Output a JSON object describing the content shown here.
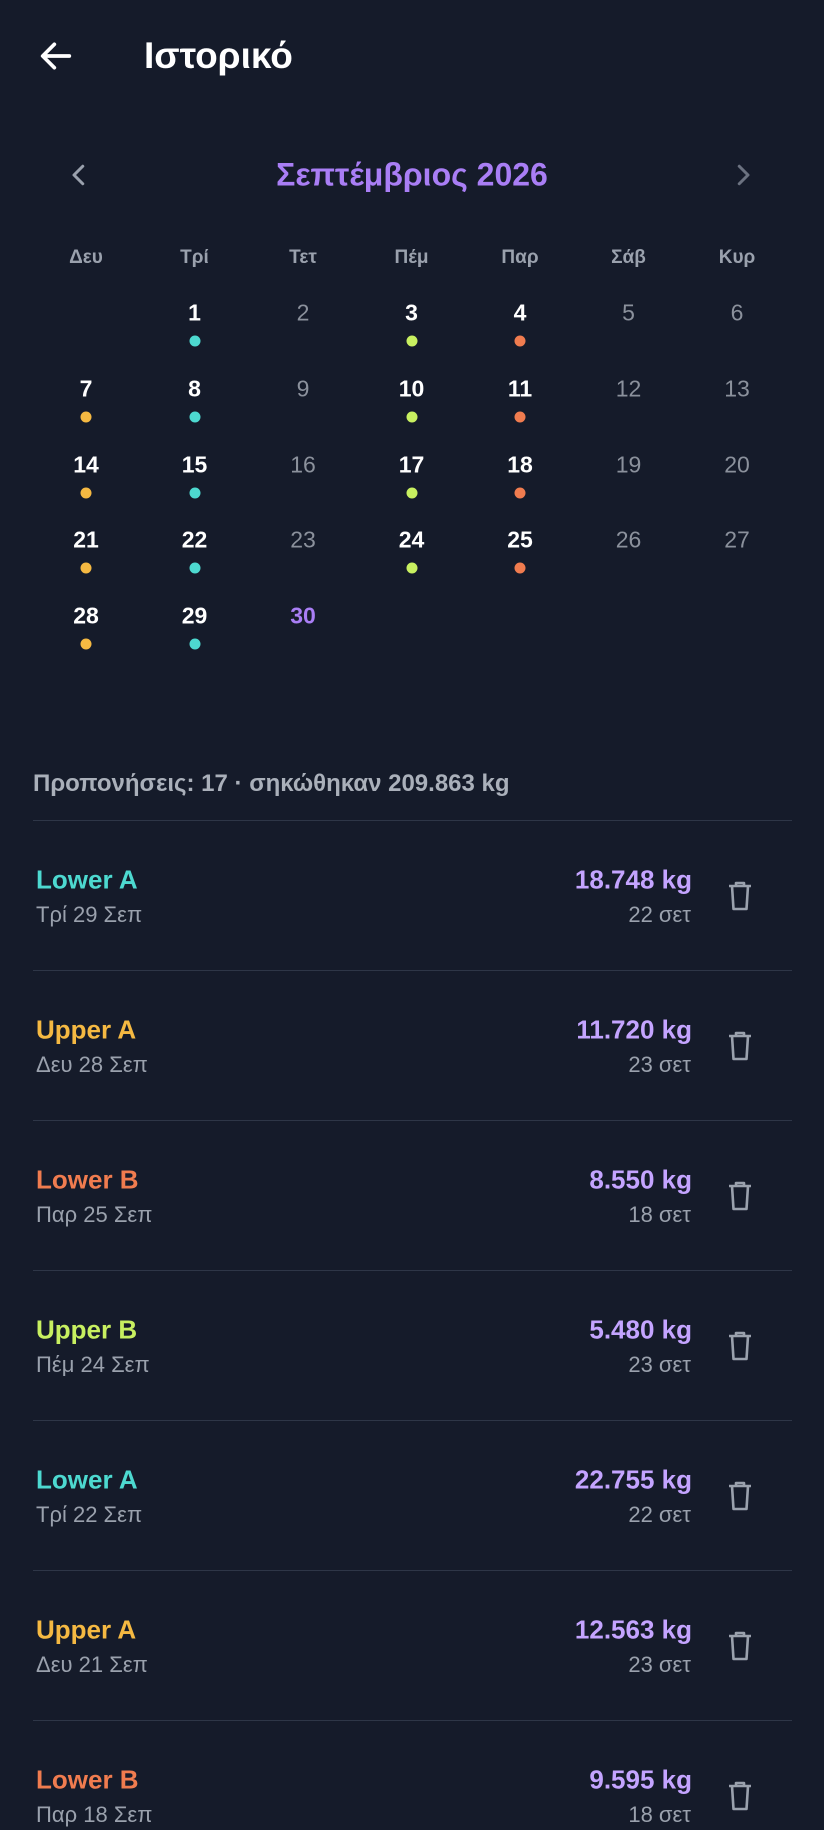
{
  "header": {
    "title": "Ιστορικό"
  },
  "calendar": {
    "month_title": "Σεπτέμβριος 2026",
    "weekdays": [
      "Δευ",
      "Τρί",
      "Τετ",
      "Πέμ",
      "Παρ",
      "Σάβ",
      "Κυρ"
    ],
    "weeks": [
      [
        null,
        {
          "day": 1,
          "dot": "#4dd9d0"
        },
        {
          "day": 2
        },
        {
          "day": 3,
          "dot": "#c8f060"
        },
        {
          "day": 4,
          "dot": "#f07c4f"
        },
        {
          "day": 5
        },
        {
          "day": 6
        }
      ],
      [
        {
          "day": 7,
          "dot": "#f5b942"
        },
        {
          "day": 8,
          "dot": "#4dd9d0"
        },
        {
          "day": 9
        },
        {
          "day": 10,
          "dot": "#c8f060"
        },
        {
          "day": 11,
          "dot": "#f07c4f"
        },
        {
          "day": 12
        },
        {
          "day": 13
        }
      ],
      [
        {
          "day": 14,
          "dot": "#f5b942"
        },
        {
          "day": 15,
          "dot": "#4dd9d0"
        },
        {
          "day": 16
        },
        {
          "day": 17,
          "dot": "#c8f060"
        },
        {
          "day": 18,
          "dot": "#f07c4f"
        },
        {
          "day": 19
        },
        {
          "day": 20
        }
      ],
      [
        {
          "day": 21,
          "dot": "#f5b942"
        },
        {
          "day": 22,
          "dot": "#4dd9d0"
        },
        {
          "day": 23
        },
        {
          "day": 24,
          "dot": "#c8f060"
        },
        {
          "day": 25,
          "dot": "#f07c4f"
        },
        {
          "day": 26
        },
        {
          "day": 27
        }
      ],
      [
        {
          "day": 28,
          "dot": "#f5b942"
        },
        {
          "day": 29,
          "dot": "#4dd9d0"
        },
        {
          "day": 30,
          "today": true
        }
      ]
    ]
  },
  "summary": "Προπονήσεις: 17 · σηκώθηκαν 209.863 kg",
  "sessions": [
    {
      "name": "Lower A",
      "color": "#4dd9d0",
      "date": "Τρί 29 Σεπ",
      "volume": "18.748 kg",
      "sets": "22 σετ"
    },
    {
      "name": "Upper A",
      "color": "#f5b942",
      "date": "Δευ 28 Σεπ",
      "volume": "11.720 kg",
      "sets": "23 σετ"
    },
    {
      "name": "Lower B",
      "color": "#f07c4f",
      "date": "Παρ 25 Σεπ",
      "volume": "8.550 kg",
      "sets": "18 σετ"
    },
    {
      "name": "Upper B",
      "color": "#c8f060",
      "date": "Πέμ 24 Σεπ",
      "volume": "5.480 kg",
      "sets": "23 σετ"
    },
    {
      "name": "Lower A",
      "color": "#4dd9d0",
      "date": "Τρί 22 Σεπ",
      "volume": "22.755 kg",
      "sets": "22 σετ"
    },
    {
      "name": "Upper A",
      "color": "#f5b942",
      "date": "Δευ 21 Σεπ",
      "volume": "12.563 kg",
      "sets": "23 σετ"
    },
    {
      "name": "Lower B",
      "color": "#f07c4f",
      "date": "Παρ 18 Σεπ",
      "volume": "9.595 kg",
      "sets": "18 σετ"
    }
  ]
}
